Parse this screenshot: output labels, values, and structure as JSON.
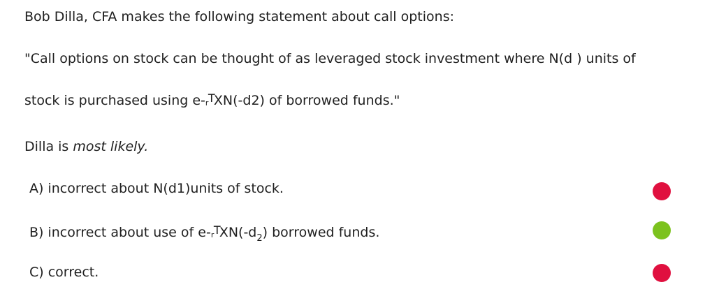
{
  "question": {
    "intro": "Bob Dilla, CFA makes the following statement about call options:",
    "quote_line1": "\"Call options on stock can be thought of as leveraged stock investment where N(d ) units of",
    "quote_line2_pre": "stock is purchased using e-",
    "quote_line2_sup_r": "r",
    "quote_line2_sup_T": "T",
    "quote_line2_post": "XN(-d2) of borrowed funds.\"",
    "prompt_pre": "Dilla is ",
    "prompt_italic": "most likely."
  },
  "choices": [
    {
      "label": "A) incorrect about N(d1)units of stock.",
      "indicator_color": "#e0103f",
      "status": "incorrect"
    },
    {
      "label_pre": "B) incorrect about use of e-",
      "sup_r": "r",
      "sup_T": "T",
      "label_mid": "XN(-d",
      "sub": "2",
      "label_post": ") borrowed funds.",
      "indicator_color": "#7cc21e",
      "status": "correct"
    },
    {
      "label": "C) correct.",
      "indicator_color": "#e0103f",
      "status": "incorrect"
    }
  ]
}
